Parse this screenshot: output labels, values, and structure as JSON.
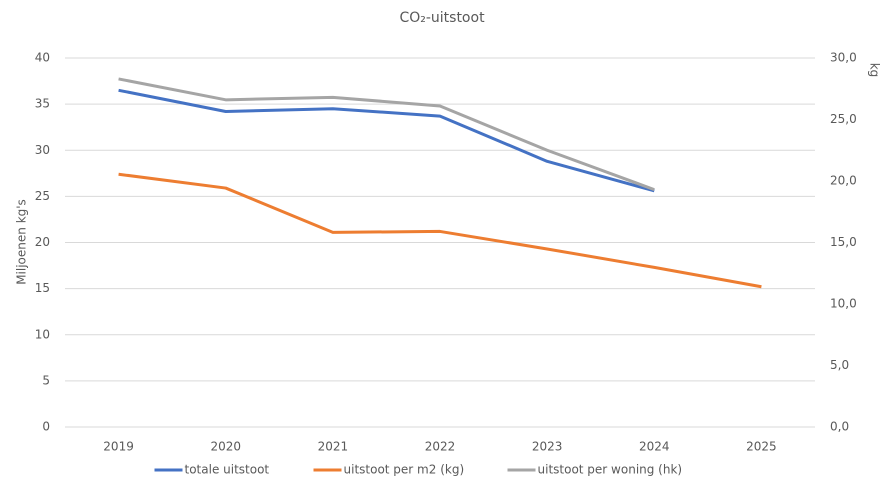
{
  "chart_data": {
    "type": "line",
    "title": "CO₂-uitstoot",
    "y_label": "Miljoenen kg's",
    "y2_label": "kg",
    "categories": [
      "2019",
      "2020",
      "2021",
      "2022",
      "2023",
      "2024",
      "2025"
    ],
    "series": [
      {
        "name": "totale uitstoot",
        "color": "#4472c4",
        "values": [
          36.5,
          34.2,
          34.5,
          33.7,
          28.8,
          25.6,
          null
        ]
      },
      {
        "name": "uitstoot per m2 (kg)",
        "color": "#ed7d31",
        "values": [
          27.4,
          25.9,
          21.1,
          21.2,
          19.3,
          17.3,
          15.2
        ]
      },
      {
        "name": "uitstoot per woning (hk)",
        "color": "#a5a5a5",
        "axis": "y2",
        "values": [
          28.3,
          26.6,
          26.8,
          26.1,
          22.5,
          19.3,
          null
        ]
      }
    ],
    "ylim": [
      0,
      40
    ],
    "yticks": [
      0,
      5,
      10,
      15,
      20,
      25,
      30,
      35,
      40
    ],
    "y2lim": [
      0,
      30
    ],
    "y2ticks": [
      {
        "value": 0,
        "label": "0,0"
      },
      {
        "value": 5,
        "label": "5,0"
      },
      {
        "value": 10,
        "label": "10,0"
      },
      {
        "value": 15,
        "label": "15,0"
      },
      {
        "value": 20,
        "label": "20,0"
      },
      {
        "value": 25,
        "label": "25,0"
      },
      {
        "value": 30,
        "label": "30,0"
      }
    ],
    "grid": true,
    "legend": "bottom"
  }
}
